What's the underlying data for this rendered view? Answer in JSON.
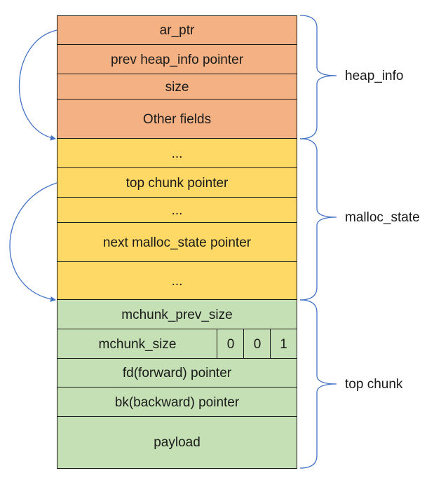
{
  "heap_info": {
    "label": "heap_info",
    "fields": [
      "ar_ptr",
      "prev heap_info pointer",
      "size",
      "Other fields"
    ]
  },
  "malloc_state": {
    "label": "malloc_state",
    "fields": [
      "...",
      "top chunk pointer",
      "...",
      "next malloc_state pointer",
      "..."
    ]
  },
  "top_chunk": {
    "label": "top chunk",
    "prev_size": "mchunk_prev_size",
    "size": "mchunk_size",
    "flags": [
      "0",
      "0",
      "1"
    ],
    "fd": "fd(forward) pointer",
    "bk": "bk(backward) pointer",
    "payload": "payload"
  },
  "colors": {
    "heap_info": "#f4b183",
    "malloc_state": "#ffd966",
    "top_chunk": "#c5e0b4",
    "arrow": "#4472c4",
    "brace": "#4472c4"
  }
}
